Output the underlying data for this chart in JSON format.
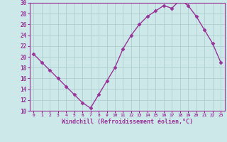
{
  "x": [
    0,
    1,
    2,
    3,
    4,
    5,
    6,
    7,
    8,
    9,
    10,
    11,
    12,
    13,
    14,
    15,
    16,
    17,
    18,
    19,
    20,
    21,
    22,
    23
  ],
  "y": [
    20.5,
    19.0,
    17.5,
    16.0,
    14.5,
    13.0,
    11.5,
    10.5,
    13.0,
    15.5,
    18.0,
    21.5,
    24.0,
    26.0,
    27.5,
    28.5,
    29.5,
    29.0,
    30.5,
    29.5,
    27.5,
    25.0,
    22.5,
    19.0
  ],
  "xlim": [
    -0.5,
    23.5
  ],
  "ylim": [
    10,
    30
  ],
  "yticks": [
    10,
    12,
    14,
    16,
    18,
    20,
    22,
    24,
    26,
    28,
    30
  ],
  "xticks": [
    0,
    1,
    2,
    3,
    4,
    5,
    6,
    7,
    8,
    9,
    10,
    11,
    12,
    13,
    14,
    15,
    16,
    17,
    18,
    19,
    20,
    21,
    22,
    23
  ],
  "xlabel": "Windchill (Refroidissement éolien,°C)",
  "line_color": "#993399",
  "marker": "D",
  "marker_size": 2.5,
  "bg_color": "#cce8e8",
  "grid_color": "#aacccc",
  "xlabel_color": "#993399",
  "tick_color": "#993399",
  "line_width": 1.0,
  "spine_color": "#993399"
}
